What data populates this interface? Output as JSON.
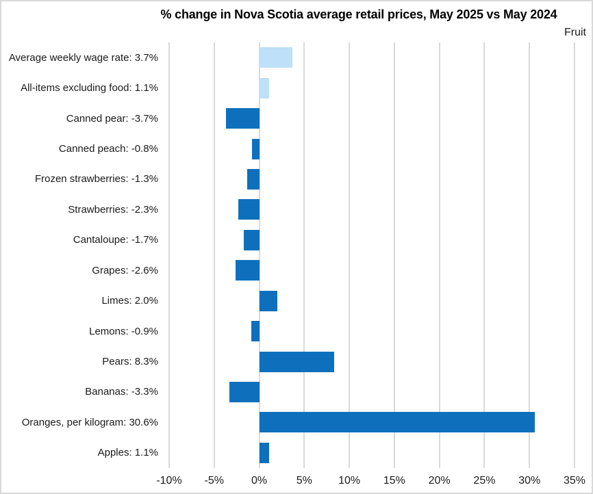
{
  "window": {
    "background_color": "#FFFFFF",
    "border_color": "#D9D9D9"
  },
  "chart_data": {
    "type": "bar",
    "orientation": "horizontal",
    "title": "% change in Nova Scotia average retail prices, May 2025 vs May 2024",
    "annotation": "Fruit",
    "categories": [
      "Average weekly wage rate",
      "All-items excluding food",
      "Canned pear",
      "Canned peach",
      "Frozen strawberries",
      "Strawberries",
      "Cantaloupe",
      "Grapes",
      "Limes",
      "Lemons",
      "Pears",
      "Bananas",
      "Oranges, per kilogram",
      "Apples"
    ],
    "values": [
      3.7,
      1.1,
      -3.7,
      -0.8,
      -1.3,
      -2.3,
      -1.7,
      -2.6,
      2.0,
      -0.9,
      8.3,
      -3.3,
      30.6,
      1.1
    ],
    "category_labels": [
      "Average weekly wage rate: 3.7%",
      "All-items excluding food: 1.1%",
      "Canned pear: -3.7%",
      "Canned peach: -0.8%",
      "Frozen strawberries: -1.3%",
      "Strawberries: -2.3%",
      "Cantaloupe: -1.7%",
      "Grapes: -2.6%",
      "Limes: 2.0%",
      "Lemons: -0.9%",
      "Pears: 8.3%",
      "Bananas: -3.3%",
      "Oranges, per kilogram: 30.6%",
      "Apples: 1.1%"
    ],
    "bar_roles": [
      "context",
      "context",
      "fruit",
      "fruit",
      "fruit",
      "fruit",
      "fruit",
      "fruit",
      "fruit",
      "fruit",
      "fruit",
      "fruit",
      "fruit",
      "fruit"
    ],
    "colors": {
      "context": "#BEE0F8",
      "fruit": "#0E70BC"
    },
    "x_axis": {
      "min": -10,
      "max": 35,
      "tick_step": 5,
      "ticks": [
        {
          "value": -10,
          "label": "-10%"
        },
        {
          "value": -5,
          "label": "-5%"
        },
        {
          "value": 0,
          "label": "0%"
        },
        {
          "value": 5,
          "label": "5%"
        },
        {
          "value": 10,
          "label": "10%"
        },
        {
          "value": 15,
          "label": "15%"
        },
        {
          "value": 20,
          "label": "20%"
        },
        {
          "value": 25,
          "label": "25%"
        },
        {
          "value": 30,
          "label": "30%"
        },
        {
          "value": 35,
          "label": "35%"
        }
      ]
    },
    "grid": true,
    "gridline_color": "#D9D9D9",
    "legend_position": "none",
    "value_labels_in_category_text": true
  }
}
